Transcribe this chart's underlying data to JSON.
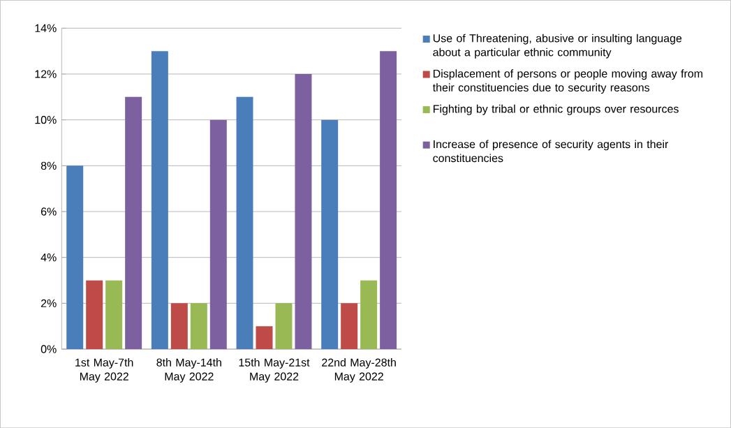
{
  "chart_data": {
    "type": "bar",
    "categories": [
      "1st May-7th May 2022",
      "8th May-14th May 2022",
      "15th May-21st May 2022",
      "22nd May-28th May 2022"
    ],
    "series": [
      {
        "name": "Use of Threatening, abusive or insulting language about a particular ethnic  community",
        "color": "#4a7ebb",
        "values": [
          8,
          13,
          11,
          10
        ]
      },
      {
        "name": "Displacement of persons or people moving away from their constituencies due to security reasons",
        "color": "#be4b48",
        "values": [
          3,
          2,
          1,
          2
        ]
      },
      {
        "name": "Fighting by tribal or ethnic groups over resources",
        "color": "#98b954",
        "values": [
          3,
          2,
          2,
          3
        ]
      },
      {
        "name": "Increase of presence of security agents in their constituencies",
        "color": "#7d60a0",
        "values": [
          11,
          10,
          12,
          13
        ]
      }
    ],
    "ylim": [
      0,
      14
    ],
    "yticks": [
      {
        "value": 0,
        "label": "0%"
      },
      {
        "value": 2,
        "label": "2%"
      },
      {
        "value": 4,
        "label": "4%"
      },
      {
        "value": 6,
        "label": "6%"
      },
      {
        "value": 8,
        "label": "8%"
      },
      {
        "value": 10,
        "label": "10%"
      },
      {
        "value": 12,
        "label": "12%"
      },
      {
        "value": 14,
        "label": "14%"
      }
    ],
    "grid": "y",
    "legend": "right"
  }
}
